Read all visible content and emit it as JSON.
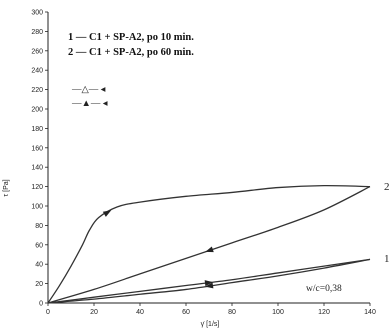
{
  "chart_data": {
    "type": "line",
    "xlabel": "γ̇ [1/s]",
    "ylabel": "τ [Pa]",
    "xlim": [
      0,
      140
    ],
    "ylim": [
      0,
      300
    ],
    "xticks": [
      0,
      20,
      40,
      60,
      80,
      100,
      120,
      140
    ],
    "yticks": [
      0,
      20,
      40,
      60,
      80,
      100,
      120,
      140,
      160,
      180,
      200,
      220,
      240,
      260,
      280,
      300
    ],
    "legend_lines": [
      "1 — C1 + SP-A2, po 10 min.",
      "2 — C1 + SP-A2, po 60 min."
    ],
    "symbol_key": [
      "—△—  ◂",
      "—▲—  ◂"
    ],
    "annotation": "w/c=0,38",
    "series": [
      {
        "label": "1",
        "up_curve": {
          "x": [
            0,
            20,
            40,
            60,
            80,
            100,
            120,
            140
          ],
          "y": [
            0,
            6,
            12,
            18,
            24,
            31,
            38,
            45
          ]
        },
        "down_curve": {
          "x": [
            140,
            120,
            100,
            80,
            60,
            40,
            20,
            0
          ],
          "y": [
            45,
            36,
            28,
            21,
            14,
            9,
            4,
            0
          ]
        }
      },
      {
        "label": "2",
        "up_curve": {
          "x": [
            0,
            5,
            10,
            15,
            18,
            22,
            30,
            40,
            60,
            80,
            100,
            120,
            140
          ],
          "y": [
            0,
            18,
            38,
            60,
            75,
            88,
            99,
            104,
            110,
            114,
            119,
            121,
            120
          ]
        },
        "down_curve": {
          "x": [
            140,
            120,
            100,
            80,
            60,
            40,
            20,
            0
          ],
          "y": [
            120,
            96,
            78,
            62,
            46,
            30,
            14,
            0
          ]
        }
      }
    ]
  }
}
